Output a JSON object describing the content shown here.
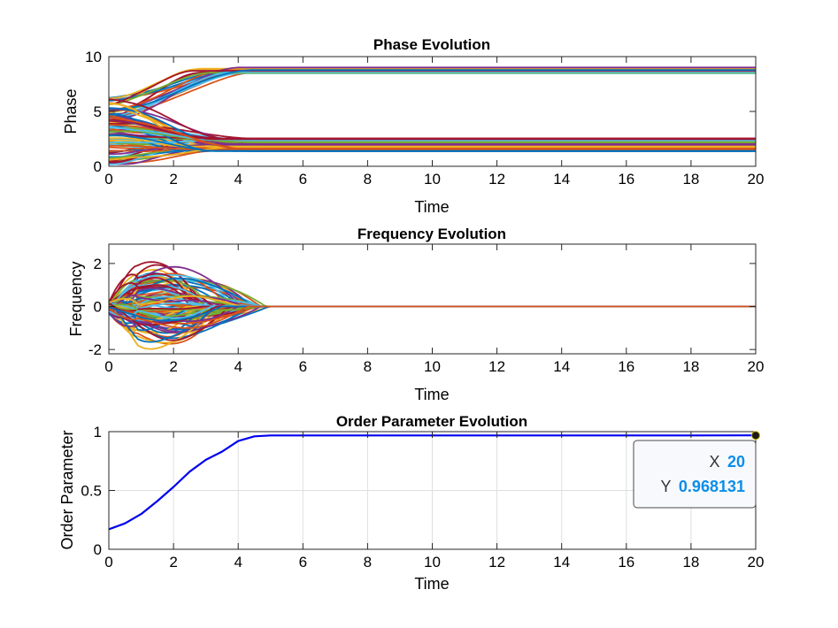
{
  "colors": {
    "order_line": "#0000ee",
    "datatip_value": "#0b8ee8",
    "grid": "#dfdfdf",
    "series_palette": [
      "#0072BD",
      "#D95319",
      "#EDB120",
      "#7E2F8E",
      "#77AC30",
      "#4DBEEE",
      "#A2142F"
    ]
  },
  "chart_data": [
    {
      "type": "line",
      "title": "Phase Evolution",
      "xlabel": "Time",
      "ylabel": "Phase",
      "xlim": [
        0,
        20
      ],
      "ylim": [
        0,
        10
      ],
      "xticks": [
        "0",
        "2",
        "4",
        "6",
        "8",
        "10",
        "12",
        "14",
        "16",
        "18",
        "20"
      ],
      "yticks": [
        "0",
        "5",
        "10"
      ],
      "grid": false,
      "description_series": "many oscillators (~100) starting between 0 and 6.3; they converge by t≈5 into two clusters",
      "clusters": [
        {
          "final_values": [
            8.5,
            8.6,
            8.7,
            8.8,
            8.9,
            9.0
          ]
        },
        {
          "final_values": [
            1.4,
            1.6,
            1.8,
            2.0,
            2.2,
            2.4,
            2.5
          ]
        }
      ]
    },
    {
      "type": "line",
      "title": "Frequency Evolution",
      "xlabel": "Time",
      "ylabel": "Frequency",
      "xlim": [
        0,
        20
      ],
      "ylim": [
        -2.2,
        2.9
      ],
      "xticks": [
        "0",
        "2",
        "4",
        "6",
        "8",
        "10",
        "12",
        "14",
        "16",
        "18",
        "20"
      ],
      "yticks": [
        "-2",
        "0",
        "2"
      ],
      "grid": false,
      "description_series": "frequencies oscillate between about -2.2 and 2.8 for t<5, then settle to 0 by t≈7"
    },
    {
      "type": "line",
      "title": "Order Parameter Evolution",
      "xlabel": "Time",
      "ylabel": "Order Parameter",
      "xlim": [
        0,
        20
      ],
      "ylim": [
        0,
        1
      ],
      "xticks": [
        "0",
        "2",
        "4",
        "6",
        "8",
        "10",
        "12",
        "14",
        "16",
        "18",
        "20"
      ],
      "yticks": [
        "0",
        "0.5",
        "1"
      ],
      "grid": true,
      "series": [
        {
          "x": [
            0,
            0.5,
            1.0,
            1.5,
            2.0,
            2.5,
            3.0,
            3.5,
            4.0,
            4.5,
            5.0,
            6.0,
            8.0,
            10.0,
            12.0,
            14.0,
            16.0,
            18.0,
            20.0
          ],
          "y": [
            0.17,
            0.22,
            0.3,
            0.41,
            0.53,
            0.66,
            0.76,
            0.83,
            0.92,
            0.96,
            0.968,
            0.968,
            0.968,
            0.968,
            0.968,
            0.968,
            0.968,
            0.968,
            0.968131
          ]
        }
      ],
      "datatip": {
        "x_label": "X",
        "x_value": "20",
        "y_label": "Y",
        "y_value": "0.968131"
      }
    }
  ]
}
